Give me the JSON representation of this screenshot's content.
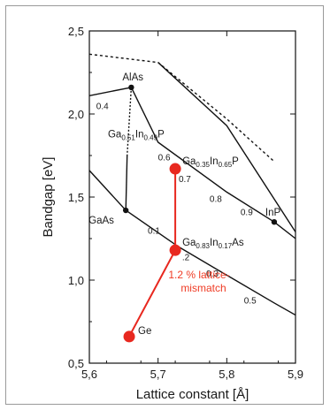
{
  "chart_data": {
    "type": "scatter",
    "xlabel": "Lattice constant [Å]",
    "ylabel": "Bandgap [eV]",
    "xlim": [
      5.6,
      5.9
    ],
    "ylim": [
      0.5,
      2.5
    ],
    "xticks": [
      "5,6",
      "5,7",
      "5,8",
      "5,9"
    ],
    "yticks": [
      "0,5",
      "1,0",
      "1,5",
      "2,0",
      "2,5"
    ],
    "xtick_values": [
      5.6,
      5.7,
      5.8,
      5.9
    ],
    "ytick_values": [
      0.5,
      1.0,
      1.5,
      2.0,
      2.5
    ],
    "grid": false,
    "points": [
      {
        "id": "alas",
        "label": "AlAs",
        "x": 5.661,
        "y": 2.16,
        "color": "#111111"
      },
      {
        "id": "gaas",
        "label": "GaAs",
        "x": 5.653,
        "y": 1.42,
        "color": "#111111"
      },
      {
        "id": "inp",
        "label": "InP",
        "x": 5.869,
        "y": 1.35,
        "color": "#111111"
      },
      {
        "id": "gainp",
        "label_main": "Ga",
        "label_sub1": "0.35",
        "label_mid": "In",
        "label_sub2": "0.65",
        "label_end": "P",
        "x": 5.725,
        "y": 1.67,
        "color": "#e8281f"
      },
      {
        "id": "gainas",
        "label_main": "Ga",
        "label_sub1": "0.83",
        "label_mid": "In",
        "label_sub2": "0.17",
        "label_end": "As",
        "x": 5.725,
        "y": 1.18,
        "color": "#e8281f"
      },
      {
        "id": "ge",
        "label": "Ge",
        "x": 5.658,
        "y": 0.66,
        "color": "#e8281f"
      }
    ],
    "lattice_matched_label": {
      "main": "Ga",
      "sub1": "0.51",
      "mid": "In",
      "sub2": "0.49",
      "end": "P"
    },
    "curves": {
      "gaas_inp": [
        [
          5.6,
          1.66
        ],
        [
          5.653,
          1.42
        ],
        [
          5.73,
          1.2
        ],
        [
          5.8,
          1.03
        ],
        [
          5.87,
          0.86
        ],
        [
          5.9,
          0.79
        ]
      ],
      "gaas_inp_x_labels": [
        {
          "text": "0.1",
          "x": 5.685,
          "y": 1.28
        },
        {
          "text": ".2",
          "x": 5.735,
          "y": 1.12
        },
        {
          "text": "0.3",
          "x": 5.77,
          "y": 1.02
        },
        {
          "text": "0.5",
          "x": 5.825,
          "y": 0.86
        }
      ],
      "alas_inp": [
        [
          5.6,
          2.11
        ],
        [
          5.661,
          2.16
        ],
        [
          5.7,
          1.83
        ],
        [
          5.8,
          1.53
        ],
        [
          5.869,
          1.35
        ],
        [
          5.9,
          1.25
        ]
      ],
      "alas_inp_x_labels": [
        {
          "text": "0.4",
          "x": 5.61,
          "y": 2.03
        },
        {
          "text": "0.6",
          "x": 5.7,
          "y": 1.72
        },
        {
          "text": "0.7",
          "x": 5.73,
          "y": 1.59
        },
        {
          "text": "0.8",
          "x": 5.775,
          "y": 1.47
        },
        {
          "text": "0.9",
          "x": 5.82,
          "y": 1.39
        }
      ],
      "upper_dashed": [
        [
          5.6,
          2.36
        ],
        [
          5.7,
          2.31
        ],
        [
          5.8,
          1.97
        ],
        [
          5.87,
          1.71
        ]
      ],
      "dashed_alas": [
        [
          5.661,
          2.16
        ],
        [
          5.655,
          1.75
        ]
      ],
      "solid_alas_gaas": [
        [
          5.655,
          1.75
        ],
        [
          5.653,
          1.42
        ]
      ],
      "upper_solid": [
        [
          5.7,
          2.31
        ],
        [
          5.8,
          1.93
        ],
        [
          5.9,
          1.29
        ]
      ],
      "red_tie": [
        [
          5.658,
          0.66
        ],
        [
          5.725,
          1.18
        ],
        [
          5.725,
          1.67
        ]
      ]
    },
    "annotation": {
      "line1": "1.2 % lattice-",
      "line2": "mismatch",
      "x": 5.715,
      "y": 1.01,
      "color": "#ef3b24"
    }
  }
}
